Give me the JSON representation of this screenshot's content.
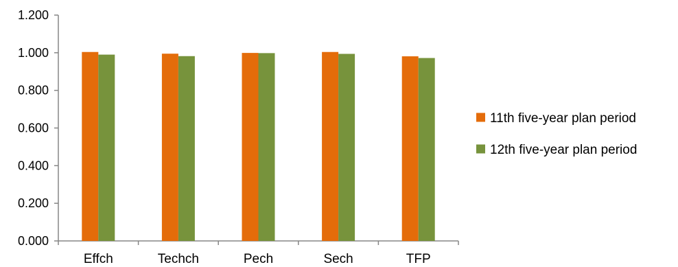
{
  "chart_data": {
    "type": "bar",
    "categories": [
      "Effch",
      "Techch",
      "Pech",
      "Sech",
      "TFP"
    ],
    "series": [
      {
        "name": "11th five-year plan period",
        "color": "#E46C0A",
        "values": [
          1.004,
          0.995,
          0.999,
          1.004,
          0.981
        ]
      },
      {
        "name": "12th five-year plan period",
        "color": "#77933C",
        "values": [
          0.99,
          0.982,
          0.998,
          0.994,
          0.972
        ]
      }
    ],
    "y_ticks": [
      "0.000",
      "0.200",
      "0.400",
      "0.600",
      "0.800",
      "1.000",
      "1.200"
    ],
    "ylim": [
      0,
      1.2
    ],
    "grid": false,
    "legend_position": "right"
  }
}
